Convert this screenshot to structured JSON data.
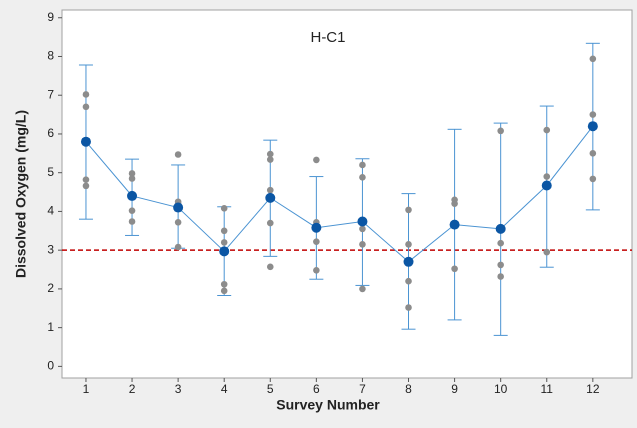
{
  "chart_data": {
    "type": "interval",
    "title": "H-C1",
    "x_label": "Survey Number",
    "y_label": "Dissolved Oxygen (mg/L)",
    "x": [
      1,
      2,
      3,
      4,
      5,
      6,
      7,
      8,
      9,
      10,
      11,
      12
    ],
    "means": [
      5.8,
      4.4,
      4.1,
      2.97,
      4.35,
      3.58,
      3.74,
      2.7,
      3.66,
      3.55,
      4.67,
      6.2
    ],
    "lower": [
      3.8,
      3.38,
      3.05,
      1.83,
      2.84,
      2.25,
      2.09,
      0.96,
      1.2,
      0.8,
      2.56,
      4.04
    ],
    "upper": [
      7.78,
      5.35,
      5.2,
      4.12,
      5.84,
      4.9,
      5.36,
      4.46,
      6.12,
      6.28,
      6.72,
      8.34
    ],
    "observations": [
      [
        7.02,
        6.7,
        4.82,
        4.66
      ],
      [
        4.98,
        4.85,
        4.02,
        3.74
      ],
      [
        5.47,
        4.25,
        4.2,
        3.72,
        3.08
      ],
      [
        4.08,
        3.5,
        3.2,
        2.12,
        1.95
      ],
      [
        5.48,
        5.34,
        4.55,
        3.7,
        2.57
      ],
      [
        5.33,
        3.72,
        3.62,
        3.22,
        2.48
      ],
      [
        5.2,
        4.88,
        3.55,
        3.15,
        2.0
      ],
      [
        4.04,
        3.15,
        2.2,
        1.52
      ],
      [
        4.3,
        4.2,
        2.52
      ],
      [
        6.08,
        3.18,
        2.62,
        2.32
      ],
      [
        6.1,
        4.9,
        2.95
      ],
      [
        7.94,
        6.5,
        5.5,
        4.84
      ]
    ],
    "mean_color": "#0b56a4",
    "line_color": "#4a93d2",
    "point_color": "#8c8c8c",
    "reference_line": {
      "value": 3,
      "color": "#c00000"
    },
    "xlim": [
      0.48,
      12.85
    ],
    "ylim": [
      -0.3,
      9.2
    ],
    "xticks": [
      1,
      2,
      3,
      4,
      5,
      6,
      7,
      8,
      9,
      10,
      11,
      12
    ],
    "yticks": [
      0,
      1,
      2,
      3,
      4,
      5,
      6,
      7,
      8,
      9
    ]
  }
}
